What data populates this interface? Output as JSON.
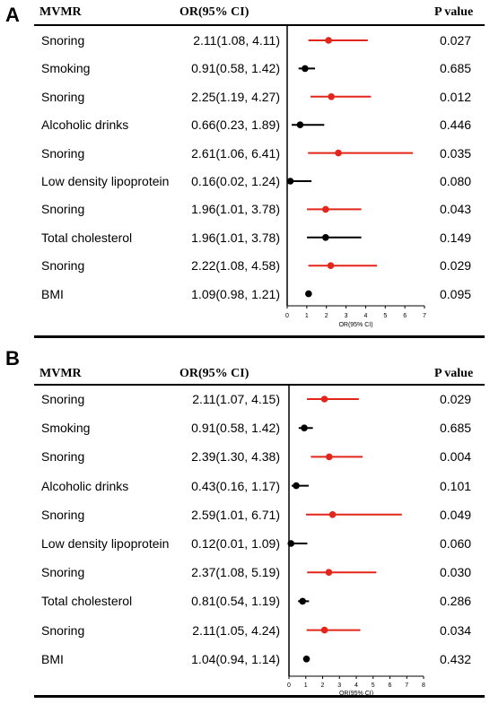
{
  "chart_data": [
    {
      "type": "forest",
      "panel": "A",
      "title": "",
      "col_headers": {
        "label": "MVMR",
        "or": "OR(95% CI)",
        "p": "P value"
      },
      "xlabel": "OR(95% CI)",
      "xlim": [
        0,
        7
      ],
      "xticks": [
        0,
        1,
        2,
        3,
        4,
        5,
        6,
        7
      ],
      "ref_line": 1,
      "rows": [
        {
          "label": "Snoring",
          "or": 2.11,
          "lo": 1.08,
          "hi": 4.11,
          "or_text": "2.11(1.08, 4.11)",
          "p": "0.027",
          "color": "#e3261b"
        },
        {
          "label": "Smoking",
          "or": 0.91,
          "lo": 0.58,
          "hi": 1.42,
          "or_text": "0.91(0.58, 1.42)",
          "p": "0.685",
          "color": "#000000"
        },
        {
          "label": "Snoring",
          "or": 2.25,
          "lo": 1.19,
          "hi": 4.27,
          "or_text": "2.25(1.19, 4.27)",
          "p": "0.012",
          "color": "#e3261b"
        },
        {
          "label": "Alcoholic drinks",
          "or": 0.66,
          "lo": 0.23,
          "hi": 1.89,
          "or_text": "0.66(0.23, 1.89)",
          "p": "0.446",
          "color": "#000000"
        },
        {
          "label": "Snoring",
          "or": 2.61,
          "lo": 1.06,
          "hi": 6.41,
          "or_text": "2.61(1.06, 6.41)",
          "p": "0.035",
          "color": "#e3261b"
        },
        {
          "label": "Low density lipoprotein",
          "or": 0.16,
          "lo": 0.02,
          "hi": 1.24,
          "or_text": "0.16(0.02, 1.24)",
          "p": "0.080",
          "color": "#000000"
        },
        {
          "label": "Snoring",
          "or": 1.96,
          "lo": 1.01,
          "hi": 3.78,
          "or_text": "1.96(1.01, 3.78)",
          "p": "0.043",
          "color": "#e3261b"
        },
        {
          "label": "Total cholesterol",
          "or": 1.96,
          "lo": 1.01,
          "hi": 3.78,
          "or_text": "1.96(1.01, 3.78)",
          "p": "0.149",
          "color": "#000000"
        },
        {
          "label": "Snoring",
          "or": 2.22,
          "lo": 1.08,
          "hi": 4.58,
          "or_text": "2.22(1.08, 4.58)",
          "p": "0.029",
          "color": "#e3261b"
        },
        {
          "label": "BMI",
          "or": 1.09,
          "lo": 0.98,
          "hi": 1.21,
          "or_text": "1.09(0.98, 1.21)",
          "p": "0.095",
          "color": "#000000"
        }
      ]
    },
    {
      "type": "forest",
      "panel": "B",
      "title": "",
      "col_headers": {
        "label": "MVMR",
        "or": "OR(95% CI)",
        "p": "P value"
      },
      "xlabel": "OR(95% CI)",
      "xlim": [
        0,
        8
      ],
      "xticks": [
        0,
        1,
        2,
        3,
        4,
        5,
        6,
        7,
        8
      ],
      "ref_line": 1,
      "rows": [
        {
          "label": "Snoring",
          "or": 2.11,
          "lo": 1.07,
          "hi": 4.15,
          "or_text": "2.11(1.07, 4.15)",
          "p": "0.029",
          "color": "#e3261b"
        },
        {
          "label": "Smoking",
          "or": 0.91,
          "lo": 0.58,
          "hi": 1.42,
          "or_text": "0.91(0.58, 1.42)",
          "p": "0.685",
          "color": "#000000"
        },
        {
          "label": "Snoring",
          "or": 2.39,
          "lo": 1.3,
          "hi": 4.38,
          "or_text": "2.39(1.30, 4.38)",
          "p": "0.004",
          "color": "#e3261b"
        },
        {
          "label": "Alcoholic drinks",
          "or": 0.43,
          "lo": 0.16,
          "hi": 1.17,
          "or_text": "0.43(0.16, 1.17)",
          "p": "0.101",
          "color": "#000000"
        },
        {
          "label": "Snoring",
          "or": 2.59,
          "lo": 1.01,
          "hi": 6.71,
          "or_text": "2.59(1.01, 6.71)",
          "p": "0.049",
          "color": "#e3261b"
        },
        {
          "label": "Low density lipoprotein",
          "or": 0.12,
          "lo": 0.01,
          "hi": 1.09,
          "or_text": "0.12(0.01, 1.09)",
          "p": "0.060",
          "color": "#000000"
        },
        {
          "label": "Snoring",
          "or": 2.37,
          "lo": 1.08,
          "hi": 5.19,
          "or_text": "2.37(1.08, 5.19)",
          "p": "0.030",
          "color": "#e3261b"
        },
        {
          "label": "Total cholesterol",
          "or": 0.81,
          "lo": 0.54,
          "hi": 1.19,
          "or_text": "0.81(0.54, 1.19)",
          "p": "0.286",
          "color": "#000000"
        },
        {
          "label": "Snoring",
          "or": 2.11,
          "lo": 1.05,
          "hi": 4.24,
          "or_text": "2.11(1.05, 4.24)",
          "p": "0.034",
          "color": "#e3261b"
        },
        {
          "label": "BMI",
          "or": 1.04,
          "lo": 0.94,
          "hi": 1.14,
          "or_text": "1.04(0.94, 1.14)",
          "p": "0.432",
          "color": "#000000"
        }
      ]
    }
  ]
}
